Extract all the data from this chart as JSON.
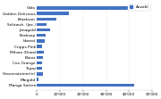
{
  "categories": [
    "Gala",
    "Golden Delicious",
    "Braeburn",
    "Schtwzh. (Jac.)",
    "Jonagold",
    "Boskoop",
    "Idared",
    "Cripps Pink",
    "Mihwa (Diwa)",
    "Elstar",
    "Cox Orange",
    "Topaz",
    "Gravensteiner(e)",
    "Maigold",
    "Manga Sorten"
  ],
  "values": [
    40000,
    14000,
    8500,
    4200,
    5500,
    3800,
    3200,
    2000,
    3000,
    2600,
    2200,
    2200,
    2400,
    600,
    42000
  ],
  "bar_color": "#4472C4",
  "legend_label": "Anzahl",
  "xlim": [
    0,
    50000
  ],
  "xtick_values": [
    0,
    10000,
    20000,
    30000,
    40000,
    50000
  ],
  "background_color": "#ffffff",
  "grid_color": "#e8e8e8"
}
